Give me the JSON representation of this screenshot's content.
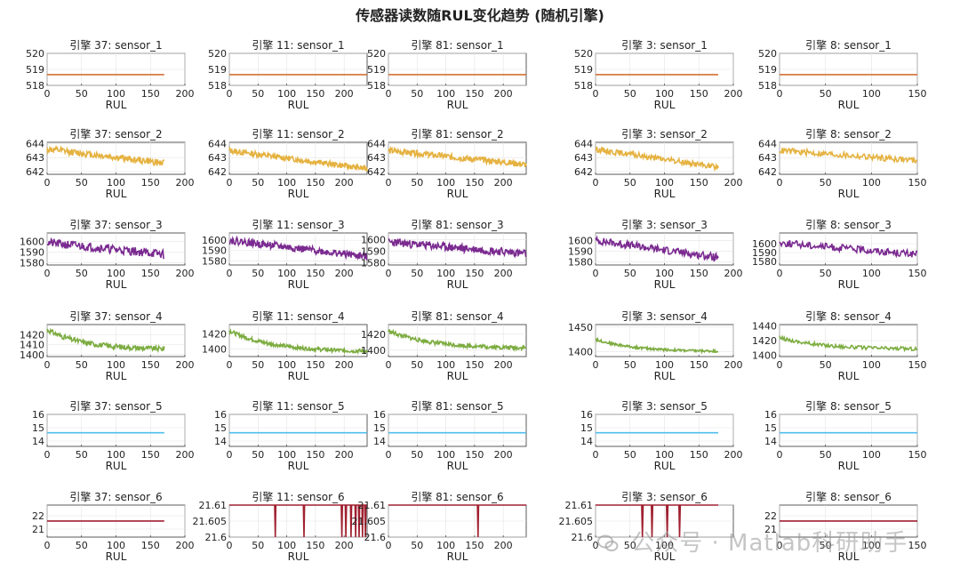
{
  "title": "传感器读数随RUL变化趋势 (随机引擎)",
  "watermark": "公众号 · Matlab科研助手",
  "colors": {
    "sensor_1": "#D27034",
    "sensor_2": "#E5B240",
    "sensor_3": "#7A2A90",
    "sensor_4": "#7CAC40",
    "sensor_5": "#4DBEEE",
    "sensor_6": "#A02030"
  },
  "chart_data": [
    {
      "type": "line",
      "title": "引擎 37: sensor_1",
      "xlabel": "RUL",
      "xlim": [
        0,
        200
      ],
      "xticks": [
        0,
        50,
        100,
        150,
        200
      ],
      "ylim": [
        518,
        520
      ],
      "yticks": [
        518,
        519,
        520
      ],
      "grid": true,
      "color_key": "sensor_1",
      "x_max": 170,
      "baseline": 518.67
    },
    {
      "type": "line",
      "title": "引擎 11: sensor_1",
      "xlabel": "RUL",
      "xlim": [
        0,
        240
      ],
      "xticks": [
        0,
        50,
        100,
        150,
        200
      ],
      "ylim": [
        518,
        520
      ],
      "yticks": [
        518,
        519,
        520
      ],
      "grid": true,
      "color_key": "sensor_1",
      "x_max": 240,
      "baseline": 518.67
    },
    {
      "type": "line",
      "title": "引擎 81: sensor_1",
      "xlabel": "RUL",
      "xlim": [
        0,
        240
      ],
      "xticks": [
        0,
        50,
        100,
        150,
        200
      ],
      "ylim": [
        518,
        520
      ],
      "yticks": [
        518,
        519,
        520
      ],
      "grid": true,
      "color_key": "sensor_1",
      "x_max": 240,
      "baseline": 518.67
    },
    {
      "type": "line",
      "title": "引擎 3: sensor_1",
      "xlabel": "RUL",
      "xlim": [
        0,
        200
      ],
      "xticks": [
        0,
        50,
        100,
        150,
        200
      ],
      "ylim": [
        518,
        520
      ],
      "yticks": [
        518,
        519,
        520
      ],
      "grid": true,
      "color_key": "sensor_1",
      "x_max": 178,
      "baseline": 518.67
    },
    {
      "type": "line",
      "title": "引擎 8: sensor_1",
      "xlabel": "RUL",
      "xlim": [
        0,
        150
      ],
      "xticks": [
        0,
        50,
        100,
        150
      ],
      "ylim": [
        518,
        520
      ],
      "yticks": [
        518,
        519,
        520
      ],
      "grid": true,
      "color_key": "sensor_1",
      "x_max": 150,
      "baseline": 518.67
    },
    {
      "type": "line",
      "title": "引擎 37: sensor_2",
      "xlabel": "RUL",
      "xlim": [
        0,
        200
      ],
      "xticks": [
        0,
        50,
        100,
        150,
        200
      ],
      "ylim": [
        641.8,
        644.1
      ],
      "yticks": [
        642,
        643,
        644
      ],
      "grid": true,
      "color_key": "sensor_2",
      "x_max": 170,
      "start": 643.6,
      "end": 642.6,
      "noise": 0.24,
      "seed": 12
    },
    {
      "type": "line",
      "title": "引擎 11: sensor_2",
      "xlabel": "RUL",
      "xlim": [
        0,
        240
      ],
      "xticks": [
        0,
        50,
        100,
        150,
        200
      ],
      "ylim": [
        641.8,
        644.1
      ],
      "yticks": [
        642,
        643,
        644
      ],
      "grid": true,
      "color_key": "sensor_2",
      "x_max": 240,
      "start": 643.5,
      "end": 642.2,
      "noise": 0.2,
      "seed": 13
    },
    {
      "type": "line",
      "title": "引擎 81: sensor_2",
      "xlabel": "RUL",
      "xlim": [
        0,
        240
      ],
      "xticks": [
        0,
        50,
        100,
        150,
        200
      ],
      "ylim": [
        641.8,
        644.1
      ],
      "yticks": [
        642,
        643,
        644
      ],
      "grid": true,
      "color_key": "sensor_2",
      "x_max": 240,
      "start": 643.5,
      "end": 642.5,
      "noise": 0.22,
      "seed": 14
    },
    {
      "type": "line",
      "title": "引擎 3: sensor_2",
      "xlabel": "RUL",
      "xlim": [
        0,
        200
      ],
      "xticks": [
        0,
        50,
        100,
        150,
        200
      ],
      "ylim": [
        641.8,
        644.1
      ],
      "yticks": [
        642,
        643,
        644
      ],
      "grid": true,
      "color_key": "sensor_2",
      "x_max": 178,
      "start": 643.6,
      "end": 642.3,
      "noise": 0.2,
      "seed": 15
    },
    {
      "type": "line",
      "title": "引擎 8: sensor_2",
      "xlabel": "RUL",
      "xlim": [
        0,
        150
      ],
      "xticks": [
        0,
        50,
        100,
        150
      ],
      "ylim": [
        641.8,
        644.1
      ],
      "yticks": [
        642,
        643,
        644
      ],
      "grid": true,
      "color_key": "sensor_2",
      "x_max": 150,
      "start": 643.5,
      "end": 642.8,
      "noise": 0.22,
      "seed": 16
    },
    {
      "type": "line",
      "title": "引擎 37: sensor_3",
      "xlabel": "RUL",
      "xlim": [
        0,
        200
      ],
      "xticks": [
        0,
        50,
        100,
        150,
        200
      ],
      "ylim": [
        1578,
        1608
      ],
      "yticks": [
        1580,
        1590,
        1600
      ],
      "grid": true,
      "color_key": "sensor_3",
      "x_max": 170,
      "start": 1599,
      "end": 1588,
      "noise": 4,
      "seed": 21
    },
    {
      "type": "line",
      "title": "引擎 11: sensor_3",
      "xlabel": "RUL",
      "xlim": [
        0,
        240
      ],
      "xticks": [
        0,
        50,
        100,
        150,
        200
      ],
      "ylim": [
        1576,
        1607
      ],
      "yticks": [
        1580,
        1590,
        1600
      ],
      "grid": true,
      "color_key": "sensor_3",
      "x_max": 240,
      "start": 1600,
      "end": 1584,
      "noise": 3.5,
      "seed": 22
    },
    {
      "type": "line",
      "title": "引擎 81: sensor_3",
      "xlabel": "RUL",
      "xlim": [
        0,
        240
      ],
      "xticks": [
        0,
        50,
        100,
        150,
        200
      ],
      "ylim": [
        1578,
        1606
      ],
      "yticks": [
        1580,
        1590,
        1600
      ],
      "grid": true,
      "color_key": "sensor_3",
      "x_max": 240,
      "start": 1598,
      "end": 1588,
      "noise": 3.5,
      "seed": 23
    },
    {
      "type": "line",
      "title": "引擎 3: sensor_3",
      "xlabel": "RUL",
      "xlim": [
        0,
        200
      ],
      "xticks": [
        0,
        50,
        100,
        150,
        200
      ],
      "ylim": [
        1577,
        1607
      ],
      "yticks": [
        1580,
        1590,
        1600
      ],
      "grid": true,
      "color_key": "sensor_3",
      "x_max": 178,
      "start": 1600,
      "end": 1584,
      "noise": 3.5,
      "seed": 24
    },
    {
      "type": "line",
      "title": "引擎 8: sensor_3",
      "xlabel": "RUL",
      "xlim": [
        0,
        150
      ],
      "xticks": [
        0,
        50,
        100,
        150
      ],
      "ylim": [
        1576,
        1612
      ],
      "yticks": [
        1580,
        1590,
        1600
      ],
      "grid": true,
      "color_key": "sensor_3",
      "x_max": 150,
      "start": 1601,
      "end": 1588,
      "noise": 4,
      "seed": 25
    },
    {
      "type": "line",
      "title": "引擎 37: sensor_4",
      "xlabel": "RUL",
      "xlim": [
        0,
        200
      ],
      "xticks": [
        0,
        50,
        100,
        150,
        200
      ],
      "ylim": [
        1398,
        1430
      ],
      "yticks": [
        1400,
        1410,
        1420
      ],
      "grid": true,
      "color_key": "sensor_4",
      "x_max": 170,
      "start": 1425,
      "end": 1405,
      "noise": 2.5,
      "seed": 31,
      "curve": true
    },
    {
      "type": "line",
      "title": "引擎 11: sensor_4",
      "xlabel": "RUL",
      "xlim": [
        0,
        240
      ],
      "xticks": [
        0,
        50,
        100,
        150,
        200
      ],
      "ylim": [
        1390,
        1432
      ],
      "yticks": [
        1400,
        1420
      ],
      "grid": true,
      "color_key": "sensor_4",
      "x_max": 240,
      "start": 1424,
      "end": 1396,
      "noise": 2.5,
      "seed": 32,
      "curve": true
    },
    {
      "type": "line",
      "title": "引擎 81: sensor_4",
      "xlabel": "RUL",
      "xlim": [
        0,
        240
      ],
      "xticks": [
        0,
        50,
        100,
        150,
        200
      ],
      "ylim": [
        1392,
        1432
      ],
      "yticks": [
        1400,
        1420
      ],
      "grid": true,
      "color_key": "sensor_4",
      "x_max": 240,
      "start": 1424,
      "end": 1402,
      "noise": 2.5,
      "seed": 33,
      "curve": true
    },
    {
      "type": "line",
      "title": "引擎 3: sensor_4",
      "xlabel": "RUL",
      "xlim": [
        0,
        200
      ],
      "xticks": [
        0,
        50,
        100,
        150,
        200
      ],
      "ylim": [
        1390,
        1455
      ],
      "yticks": [
        1400,
        1450
      ],
      "grid": true,
      "color_key": "sensor_4",
      "x_max": 178,
      "start": 1425,
      "end": 1400,
      "noise": 2.5,
      "seed": 34,
      "curve": true
    },
    {
      "type": "line",
      "title": "引擎 8: sensor_4",
      "xlabel": "RUL",
      "xlim": [
        0,
        150
      ],
      "xticks": [
        0,
        50,
        100,
        150
      ],
      "ylim": [
        1398,
        1442
      ],
      "yticks": [
        1400,
        1420,
        1440
      ],
      "grid": true,
      "color_key": "sensor_4",
      "x_max": 150,
      "start": 1424,
      "end": 1408,
      "noise": 2.5,
      "seed": 35,
      "curve": true
    },
    {
      "type": "line",
      "title": "引擎 37: sensor_5",
      "xlabel": "RUL",
      "xlim": [
        0,
        200
      ],
      "xticks": [
        0,
        50,
        100,
        150,
        200
      ],
      "ylim": [
        13.6,
        16
      ],
      "yticks": [
        14,
        15,
        16
      ],
      "grid": true,
      "color_key": "sensor_5",
      "x_max": 170,
      "baseline": 14.62
    },
    {
      "type": "line",
      "title": "引擎 11: sensor_5",
      "xlabel": "RUL",
      "xlim": [
        0,
        240
      ],
      "xticks": [
        0,
        50,
        100,
        150,
        200
      ],
      "ylim": [
        13.6,
        16
      ],
      "yticks": [
        14,
        15,
        16
      ],
      "grid": true,
      "color_key": "sensor_5",
      "x_max": 240,
      "baseline": 14.62
    },
    {
      "type": "line",
      "title": "引擎 81: sensor_5",
      "xlabel": "RUL",
      "xlim": [
        0,
        240
      ],
      "xticks": [
        0,
        50,
        100,
        150,
        200
      ],
      "ylim": [
        13.6,
        16
      ],
      "yticks": [
        14,
        15,
        16
      ],
      "grid": true,
      "color_key": "sensor_5",
      "x_max": 240,
      "baseline": 14.62
    },
    {
      "type": "line",
      "title": "引擎 3: sensor_5",
      "xlabel": "RUL",
      "xlim": [
        0,
        200
      ],
      "xticks": [
        0,
        50,
        100,
        150,
        200
      ],
      "ylim": [
        13.6,
        16
      ],
      "yticks": [
        14,
        15,
        16
      ],
      "grid": true,
      "color_key": "sensor_5",
      "x_max": 178,
      "baseline": 14.62
    },
    {
      "type": "line",
      "title": "引擎 8: sensor_5",
      "xlabel": "RUL",
      "xlim": [
        0,
        150
      ],
      "xticks": [
        0,
        50,
        100,
        150
      ],
      "ylim": [
        13.6,
        16
      ],
      "yticks": [
        14,
        15,
        16
      ],
      "grid": true,
      "color_key": "sensor_5",
      "x_max": 150,
      "baseline": 14.62
    },
    {
      "type": "line",
      "title": "引擎 37: sensor_6",
      "xlabel": "RUL",
      "xlim": [
        0,
        200
      ],
      "xticks": [
        0,
        50,
        100,
        150,
        200
      ],
      "ylim": [
        20.4,
        22.8
      ],
      "yticks": [
        21,
        22
      ],
      "grid": true,
      "color_key": "sensor_6",
      "x_max": 170,
      "baseline": 21.61
    },
    {
      "type": "line",
      "title": "引擎 11: sensor_6",
      "xlabel": "RUL",
      "xlim": [
        0,
        240
      ],
      "xticks": [
        0,
        50,
        100,
        150,
        200
      ],
      "ylim": [
        21.6,
        21.61
      ],
      "yticks": [
        21.6,
        21.605,
        21.61
      ],
      "ytick_labels": [
        "21.6",
        "21.605",
        "21.61"
      ],
      "grid": true,
      "color_key": "sensor_6",
      "x_max": 240,
      "baseline": 21.61,
      "dips": [
        80,
        130,
        196,
        203,
        212,
        220,
        226,
        232,
        237
      ]
    },
    {
      "type": "line",
      "title": "引擎 81: sensor_6",
      "xlabel": "RUL",
      "xlim": [
        0,
        240
      ],
      "xticks": [
        0,
        50,
        100,
        150,
        200
      ],
      "ylim": [
        21.6,
        21.61
      ],
      "yticks": [
        21.6,
        21.605,
        21.61
      ],
      "ytick_labels": [
        "21.6",
        "21.605",
        "21.61"
      ],
      "grid": true,
      "color_key": "sensor_6",
      "x_max": 240,
      "baseline": 21.61,
      "dips": [
        156
      ]
    },
    {
      "type": "line",
      "title": "引擎 3: sensor_6",
      "xlabel": "RUL",
      "xlim": [
        0,
        200
      ],
      "xticks": [
        0,
        50,
        100
      ],
      "ylim": [
        21.6,
        21.61
      ],
      "yticks": [
        21.6,
        21.605,
        21.61
      ],
      "ytick_labels": [
        "21.6",
        "21.605",
        "21.61"
      ],
      "grid": true,
      "color_key": "sensor_6",
      "x_max": 178,
      "baseline": 21.61,
      "dips": [
        68,
        82,
        104,
        122
      ]
    },
    {
      "type": "line",
      "title": "引擎 8: sensor_6",
      "xlabel": "RUL",
      "xlim": [
        0,
        150
      ],
      "xticks": [
        0,
        50,
        100,
        150
      ],
      "ylim": [
        20.4,
        22.8
      ],
      "yticks": [
        21,
        22
      ],
      "grid": true,
      "color_key": "sensor_6",
      "x_max": 150,
      "baseline": 21.61
    }
  ]
}
